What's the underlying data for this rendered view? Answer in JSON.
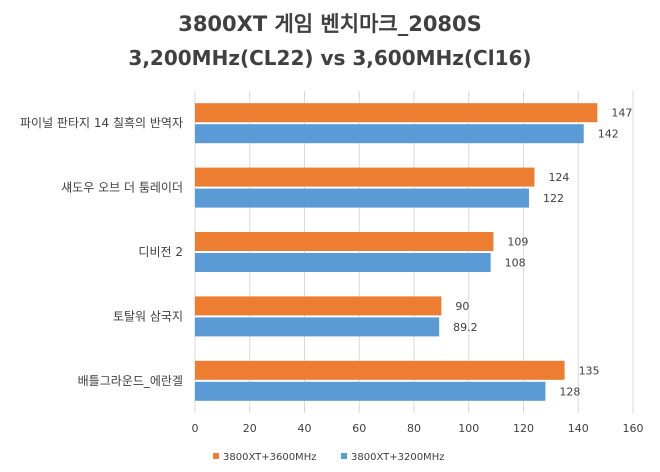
{
  "chart_data": {
    "type": "bar",
    "orientation": "horizontal",
    "title": "3800XT 게임 벤치마크_2080S",
    "subtitle": "3,200MHz(CL22) vs 3,600MHz(Cl16)",
    "categories": [
      "파이널 판타지 14 칠흑의 반역자",
      "섀도우 오브 더 툼레이더",
      "디비전 2",
      "토탈워 삼국지",
      "배틀그라운드_에란겔"
    ],
    "series": [
      {
        "name": "3800XT+3600MHz",
        "color": "#ED7D31",
        "values": [
          147,
          124,
          109,
          90,
          135
        ],
        "labels": [
          "147",
          "124",
          "109",
          "90",
          "135"
        ]
      },
      {
        "name": "3800XT+3200MHz",
        "color": "#5B9BD5",
        "values": [
          142,
          122,
          108,
          89.2,
          128
        ],
        "labels": [
          "142",
          "122",
          "108",
          "89.2",
          "128"
        ]
      }
    ],
    "xlim": [
      0,
      160
    ],
    "xticks": [
      "0",
      "20",
      "40",
      "60",
      "80",
      "100",
      "120",
      "140",
      "160"
    ],
    "grid": true,
    "legend_position": "bottom"
  }
}
